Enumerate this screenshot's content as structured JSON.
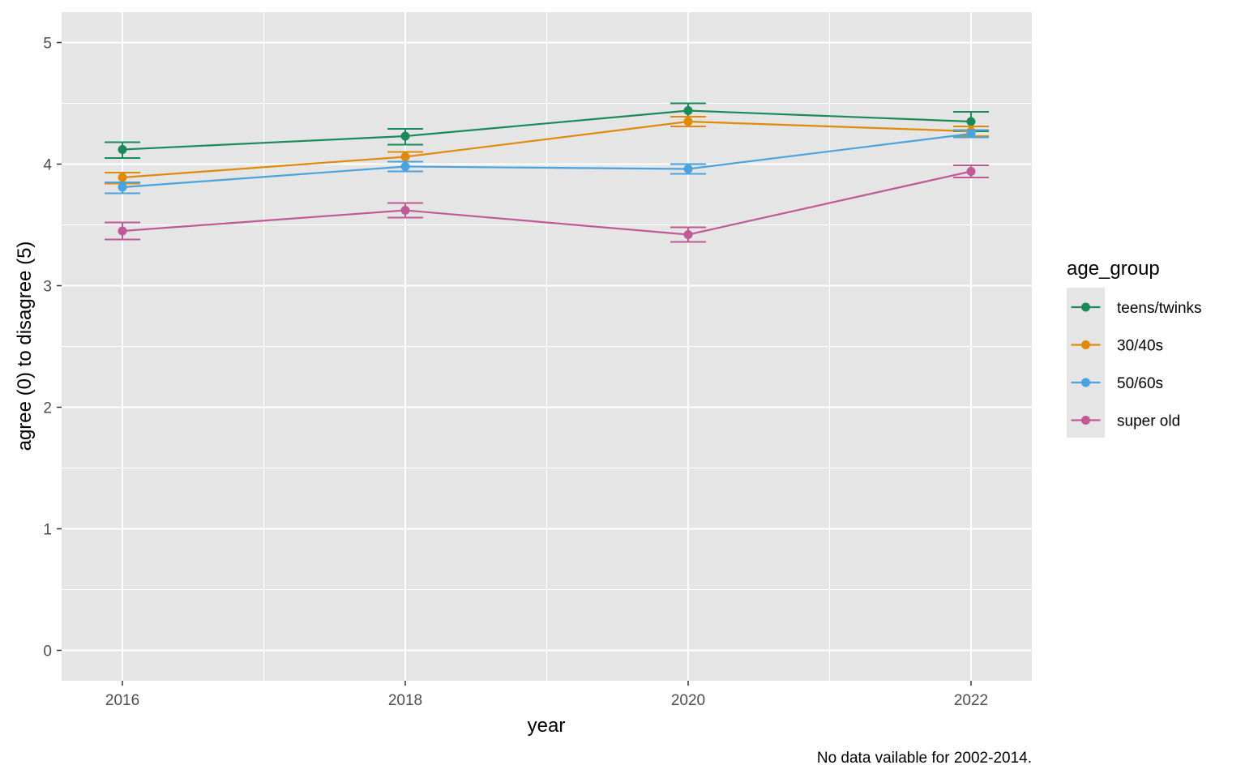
{
  "chart_data": {
    "type": "line",
    "title": "",
    "xlabel": "year",
    "ylabel": "agree (0) to disagree (5)",
    "caption": "No data vailable for 2002-2014.",
    "x": [
      2016,
      2018,
      2020,
      2022
    ],
    "x_ticks": [
      2016,
      2018,
      2020,
      2022
    ],
    "y_ticks": [
      0,
      1,
      2,
      3,
      4,
      5
    ],
    "xlim": [
      2015.57,
      2022.43
    ],
    "ylim": [
      -0.25,
      5.25
    ],
    "grid": true,
    "legend": {
      "title": "age_group",
      "position": "right"
    },
    "series": [
      {
        "name": "teens/twinks",
        "color": "#1b8a5a",
        "values": [
          4.12,
          4.23,
          4.44,
          4.35
        ],
        "err_low": [
          4.05,
          4.16,
          4.39,
          4.27
        ],
        "err_high": [
          4.18,
          4.29,
          4.5,
          4.43
        ]
      },
      {
        "name": "30/40s",
        "color": "#e08a0a",
        "values": [
          3.89,
          4.06,
          4.35,
          4.27
        ],
        "err_low": [
          3.84,
          4.02,
          4.31,
          4.23
        ],
        "err_high": [
          3.93,
          4.1,
          4.39,
          4.31
        ]
      },
      {
        "name": "50/60s",
        "color": "#4aa3df",
        "values": [
          3.81,
          3.98,
          3.96,
          4.25
        ],
        "err_low": [
          3.76,
          3.94,
          3.92,
          4.22
        ],
        "err_high": [
          3.85,
          4.02,
          4.0,
          4.28
        ]
      },
      {
        "name": "super old",
        "color": "#c05a96",
        "values": [
          3.45,
          3.62,
          3.42,
          3.94
        ],
        "err_low": [
          3.38,
          3.56,
          3.36,
          3.89
        ],
        "err_high": [
          3.52,
          3.68,
          3.48,
          3.99
        ]
      }
    ]
  }
}
